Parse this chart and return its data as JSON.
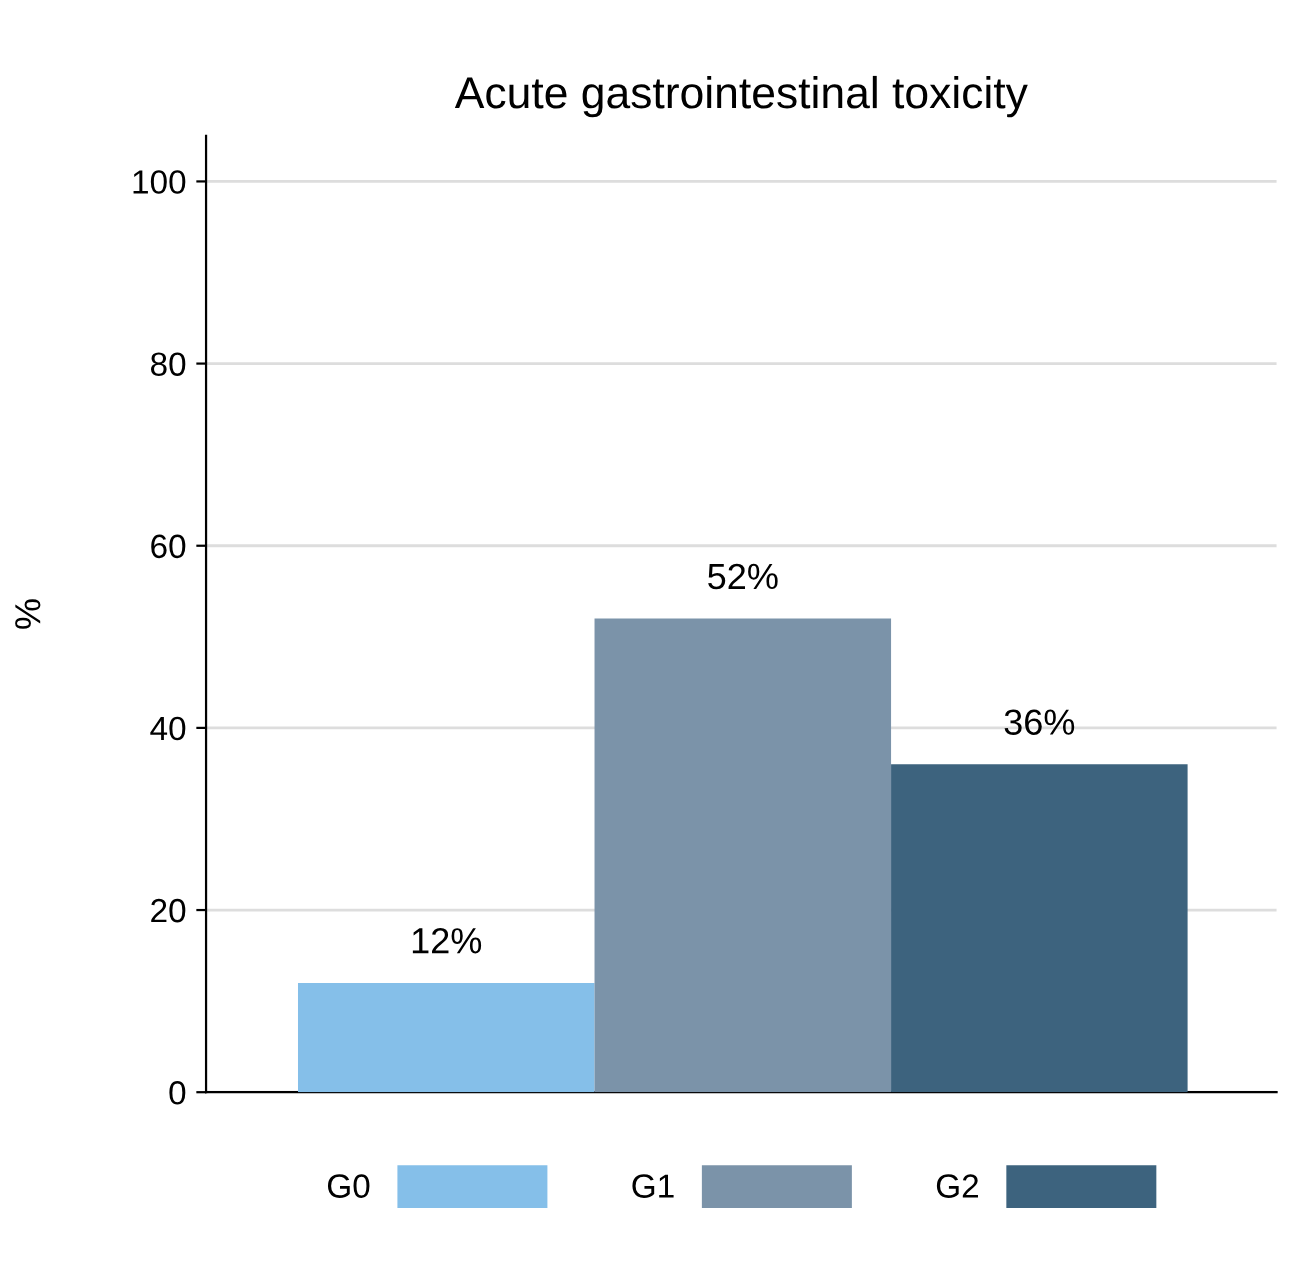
{
  "chart_data": {
    "type": "bar",
    "title": "Acute gastrointestinal toxicity",
    "ylabel": "%",
    "categories": [
      null
    ],
    "series": [
      {
        "name": "G0",
        "color": "#85bfe9",
        "values": [
          12
        ],
        "value_labels": [
          "12%"
        ]
      },
      {
        "name": "G1",
        "color": "#7b93a9",
        "values": [
          52
        ],
        "value_labels": [
          "52%"
        ]
      },
      {
        "name": "G2",
        "color": "#3d637e",
        "values": [
          36
        ],
        "value_labels": [
          "36%"
        ]
      }
    ],
    "ylim": [
      0,
      105
    ],
    "yticks": [
      0,
      20,
      40,
      60,
      80,
      100
    ],
    "grid": "y",
    "legend": "bottom"
  }
}
